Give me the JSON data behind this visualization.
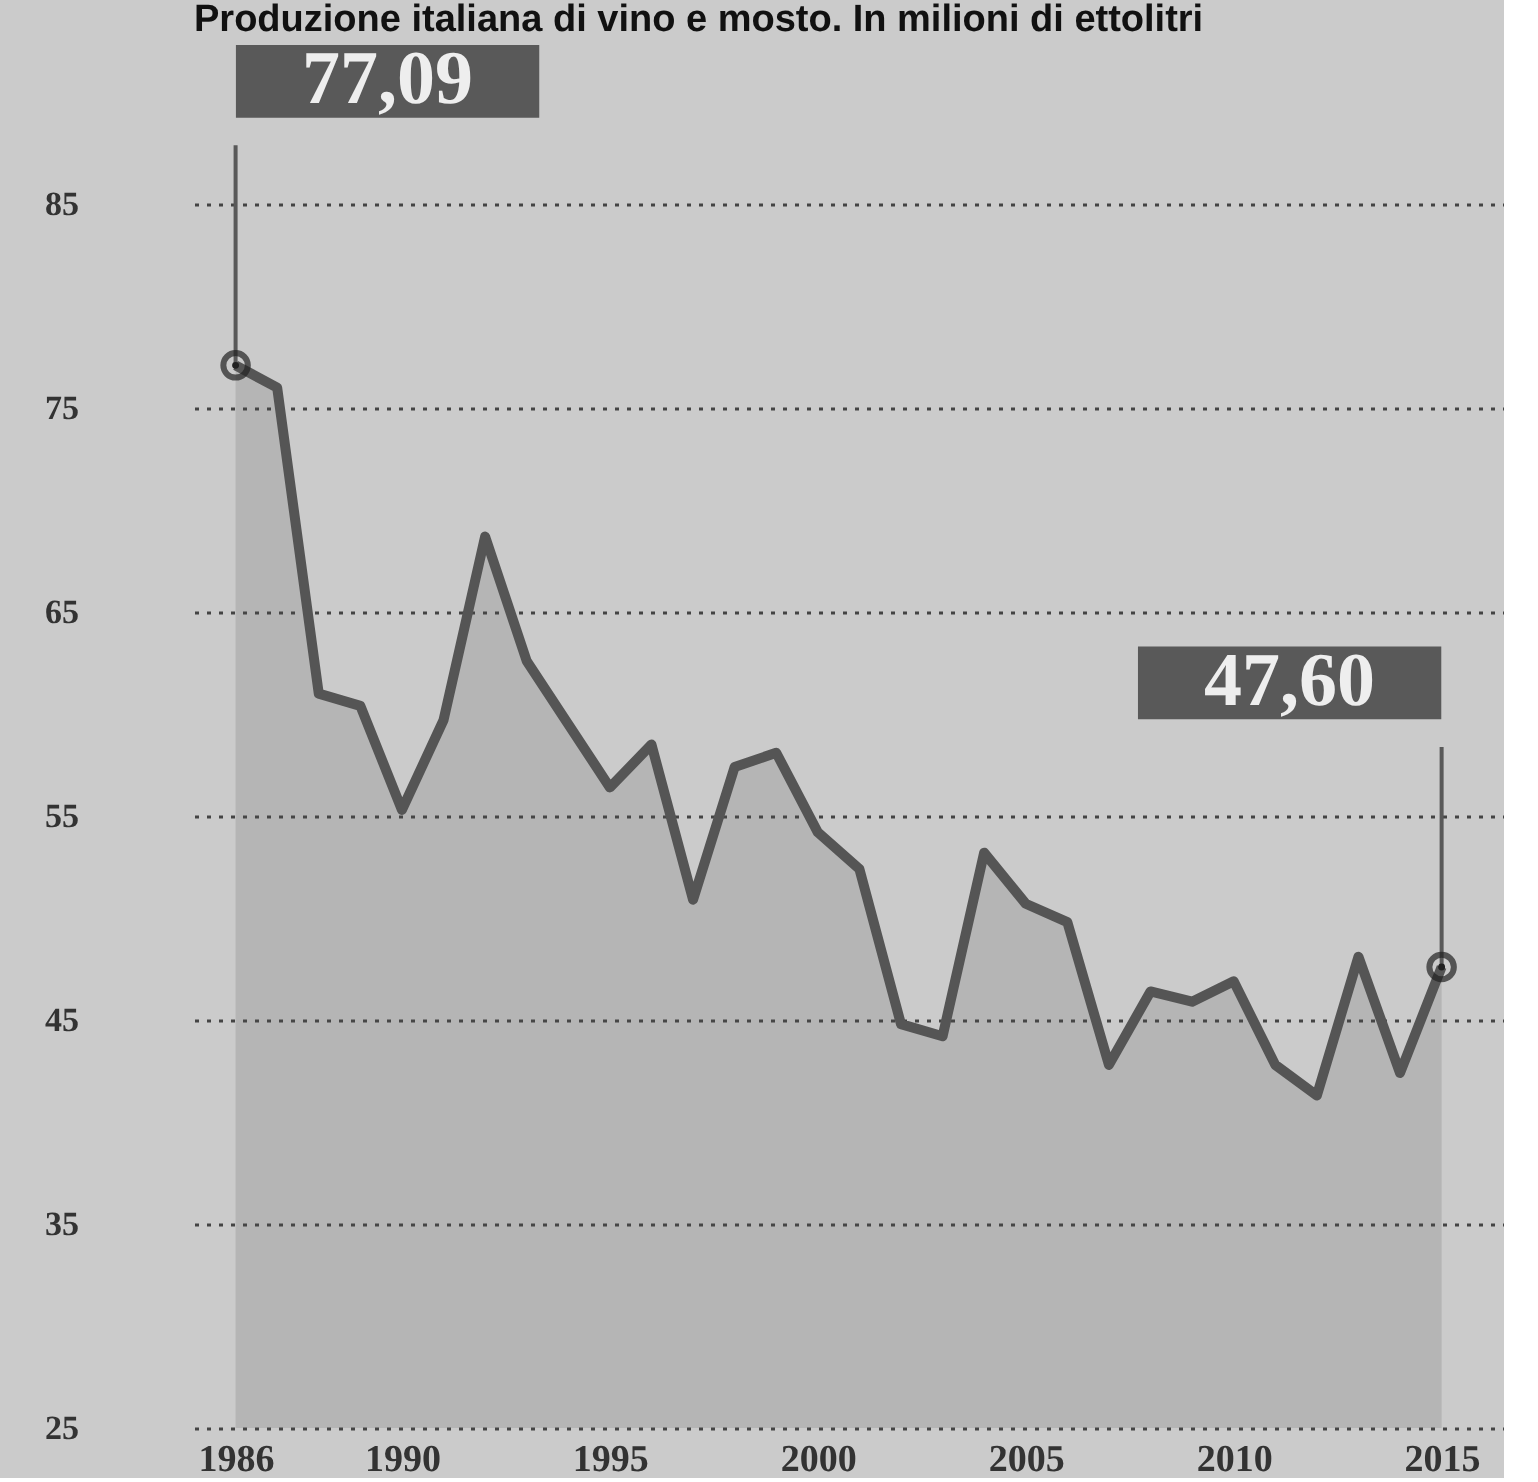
{
  "chart_data": {
    "type": "area",
    "title": "Produzione italiana di vino e mosto. In milioni di ettolitri",
    "x": [
      1986,
      1987,
      1988,
      1989,
      1990,
      1991,
      1992,
      1993,
      1994,
      1995,
      1996,
      1997,
      1998,
      1999,
      2000,
      2001,
      2002,
      2003,
      2004,
      2005,
      2006,
      2007,
      2008,
      2009,
      2010,
      2011,
      2012,
      2013,
      2014,
      2015
    ],
    "series": [
      {
        "color": "#555555",
        "values": [
          77.09,
          76.0,
          61.0,
          60.4,
          55.3,
          59.7,
          68.7,
          62.6,
          59.5,
          56.4,
          58.5,
          50.9,
          57.4,
          58.1,
          54.2,
          52.4,
          44.8,
          44.2,
          53.2,
          50.7,
          49.8,
          42.8,
          46.4,
          45.9,
          46.9,
          42.8,
          41.3,
          48.1,
          42.4,
          47.6
        ]
      }
    ],
    "annotations": [
      {
        "text": "77,09",
        "x": 1986,
        "y": 77.09
      },
      {
        "text": "47,60",
        "x": 2015,
        "y": 47.6
      }
    ],
    "xlim": [
      1985,
      2016.5
    ],
    "xticks": [
      1986,
      1990,
      1995,
      2000,
      2005,
      2010,
      2015
    ],
    "ylim": [
      25,
      85
    ],
    "yticks": [
      25,
      35,
      45,
      55,
      65,
      75,
      85
    ],
    "grid": "y"
  }
}
